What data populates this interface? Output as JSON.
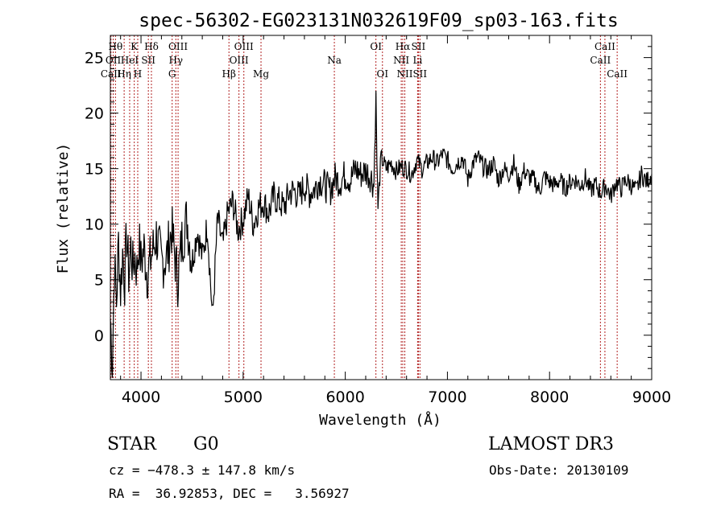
{
  "chart_data": {
    "type": "line",
    "title": "spec-56302-EG023131N032619F09_sp03-163.fits",
    "xlabel": "Wavelength (Å)",
    "ylabel": "Flux (relative)",
    "xlim": [
      3700,
      9000
    ],
    "ylim": [
      -4,
      27
    ],
    "xticks": [
      4000,
      5000,
      6000,
      7000,
      8000,
      9000
    ],
    "xtick_labels": [
      "4000",
      "5000",
      "6000",
      "7000",
      "8000",
      "9000"
    ],
    "yticks": [
      0,
      5,
      10,
      15,
      20,
      25
    ],
    "ytick_labels": [
      "0",
      "5",
      "10",
      "15",
      "20",
      "25"
    ],
    "series": [
      {
        "name": "flux",
        "x": [
          3700,
          3720,
          3740,
          3760,
          3780,
          3800,
          3820,
          3840,
          3860,
          3880,
          3900,
          3920,
          3940,
          3960,
          3980,
          4000,
          4030,
          4060,
          4100,
          4150,
          4200,
          4250,
          4300,
          4330,
          4360,
          4400,
          4450,
          4500,
          4550,
          4600,
          4650,
          4700,
          4750,
          4800,
          4850,
          4900,
          4950,
          5000,
          5050,
          5100,
          5150,
          5200,
          5250,
          5300,
          5350,
          5400,
          5450,
          5500,
          5550,
          5600,
          5650,
          5700,
          5750,
          5800,
          5850,
          5900,
          5950,
          6000,
          6050,
          6100,
          6150,
          6200,
          6250,
          6280,
          6300,
          6310,
          6320,
          6350,
          6400,
          6450,
          6500,
          6550,
          6600,
          6650,
          6700,
          6750,
          6800,
          6850,
          6900,
          6950,
          7000,
          7050,
          7100,
          7150,
          7200,
          7250,
          7300,
          7350,
          7400,
          7450,
          7500,
          7550,
          7600,
          7650,
          7700,
          7750,
          7800,
          7850,
          7900,
          7950,
          8000,
          8050,
          8100,
          8150,
          8200,
          8250,
          8300,
          8350,
          8400,
          8450,
          8500,
          8550,
          8600,
          8650,
          8700,
          8750,
          8800,
          8850,
          8900,
          8950,
          9000
        ],
        "y": [
          1.5,
          -2.5,
          6.5,
          3.0,
          8.5,
          4.0,
          7.5,
          5.0,
          9.0,
          5.5,
          8.0,
          6.0,
          7.2,
          5.8,
          8.5,
          6.5,
          7.8,
          5.5,
          7.0,
          9.0,
          6.5,
          7.0,
          9.5,
          7.2,
          5.0,
          8.5,
          10.5,
          6.5,
          9.5,
          7.0,
          10.0,
          1.5,
          10.5,
          8.0,
          11.0,
          12.0,
          9.5,
          10.5,
          12.5,
          10.0,
          11.5,
          12.0,
          11.0,
          12.5,
          12.0,
          11.5,
          12.8,
          13.0,
          12.5,
          13.5,
          12.8,
          13.2,
          14.0,
          13.5,
          13.0,
          14.2,
          13.8,
          14.5,
          14.0,
          15.0,
          14.5,
          14.8,
          14.3,
          13.5,
          22.0,
          15.5,
          11.5,
          16.0,
          15.0,
          15.5,
          14.8,
          15.2,
          15.0,
          14.5,
          15.8,
          15.0,
          15.5,
          16.0,
          15.5,
          16.3,
          15.8,
          15.0,
          15.6,
          16.0,
          14.0,
          15.5,
          16.0,
          15.2,
          14.8,
          15.5,
          14.0,
          15.0,
          14.5,
          15.5,
          13.5,
          14.8,
          14.2,
          14.0,
          13.0,
          14.3,
          13.8,
          13.5,
          14.0,
          13.2,
          13.8,
          14.0,
          13.5,
          14.2,
          13.0,
          13.6,
          12.8,
          13.5,
          12.5,
          13.8,
          13.2,
          14.0,
          13.5,
          13.0,
          14.5,
          13.8,
          14.5
        ]
      }
    ],
    "lines": [
      {
        "name": "CaII H",
        "label": "CaII",
        "wl": 3706,
        "row": 3
      },
      {
        "name": "OII",
        "label": "OII",
        "wl": 3728,
        "row": 2
      },
      {
        "name": "H-theta",
        "label": "Hθ",
        "wl": 3750,
        "row": 1
      },
      {
        "name": "H-eta",
        "label": "Hη",
        "wl": 3835,
        "row": 3
      },
      {
        "name": "HeI",
        "label": "HeI",
        "wl": 3889,
        "row": 2
      },
      {
        "name": "K",
        "label": "K",
        "wl": 3934,
        "row": 1
      },
      {
        "name": "H",
        "label": "H",
        "wl": 3968,
        "row": 3
      },
      {
        "name": "SII-4072",
        "label": "SII",
        "wl": 4072,
        "row": 2
      },
      {
        "name": "H-delta",
        "label": "Hδ",
        "wl": 4102,
        "row": 1
      },
      {
        "name": "G",
        "label": "G",
        "wl": 4305,
        "row": 3
      },
      {
        "name": "H-gamma",
        "label": "Hγ",
        "wl": 4341,
        "row": 2
      },
      {
        "name": "OIII-4363",
        "label": "OIII",
        "wl": 4363,
        "row": 1
      },
      {
        "name": "H-beta",
        "label": "Hβ",
        "wl": 4861,
        "row": 3
      },
      {
        "name": "OIII-4959",
        "label": "OIII",
        "wl": 4959,
        "row": 2
      },
      {
        "name": "OIII-5007",
        "label": "OIII",
        "wl": 5007,
        "row": 1
      },
      {
        "name": "Mg",
        "label": "Mg",
        "wl": 5175,
        "row": 3
      },
      {
        "name": "Na",
        "label": "Na",
        "wl": 5893,
        "row": 2
      },
      {
        "name": "OI-6300",
        "label": "OI",
        "wl": 6300,
        "row": 1
      },
      {
        "name": "OI-6364",
        "label": "OI",
        "wl": 6364,
        "row": 3
      },
      {
        "name": "NII-6548",
        "label": "NII",
        "wl": 6548,
        "row": 2
      },
      {
        "name": "H-alpha",
        "label": "Hα",
        "wl": 6563,
        "row": 1
      },
      {
        "name": "NII-6583",
        "label": "NII",
        "wl": 6583,
        "row": 3
      },
      {
        "name": "Li",
        "label": "Li",
        "wl": 6708,
        "row": 2
      },
      {
        "name": "SII-6716",
        "label": "SII",
        "wl": 6716,
        "row": 1
      },
      {
        "name": "SII-6731",
        "label": "SII",
        "wl": 6731,
        "row": 3
      },
      {
        "name": "CaII-8498",
        "label": "CaII",
        "wl": 8498,
        "row": 2
      },
      {
        "name": "CaII-8542",
        "label": "CaII",
        "wl": 8542,
        "row": 1
      },
      {
        "name": "CaII-8662",
        "label": "CaII",
        "wl": 8662,
        "row": 3
      }
    ],
    "line_color": "#b22222"
  },
  "info": {
    "class": "STAR",
    "subclass": "G0",
    "survey": "LAMOST DR3",
    "cz": "cz = −478.3 ± 147.8 km/s",
    "obs_date": "Obs-Date: 20130109",
    "radec": "RA =  36.92853, DEC =   3.56927"
  }
}
